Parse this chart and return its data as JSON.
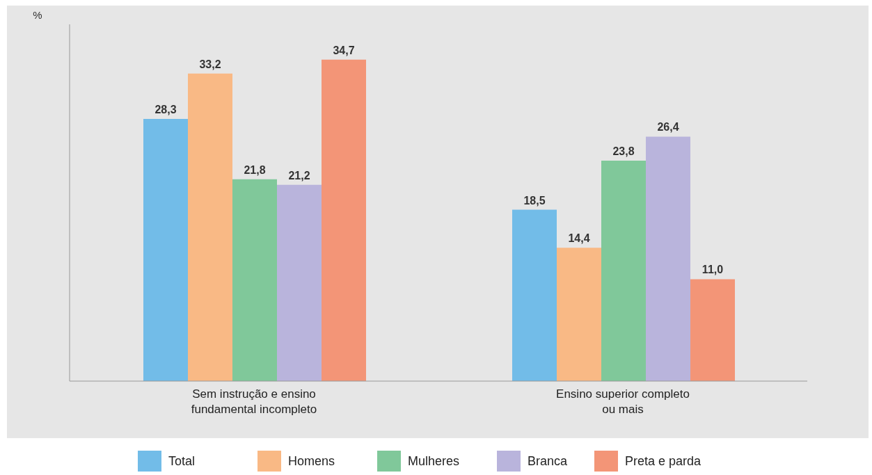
{
  "chart_data": {
    "type": "bar",
    "ylabel": "%",
    "categories": [
      "Sem instrução e ensino fundamental incompleto",
      "Ensino superior completo ou mais"
    ],
    "series": [
      {
        "name": "Total",
        "color": "#72bce8",
        "values": [
          28.3,
          18.5
        ],
        "value_labels": [
          "28,3",
          "18,5"
        ]
      },
      {
        "name": "Homens",
        "color": "#f9b985",
        "values": [
          33.2,
          14.4
        ],
        "value_labels": [
          "33,2",
          "14,4"
        ]
      },
      {
        "name": "Mulheres",
        "color": "#80c89a",
        "values": [
          21.8,
          23.8
        ],
        "value_labels": [
          "21,8",
          "23,8"
        ]
      },
      {
        "name": "Branca",
        "color": "#b9b4dc",
        "values": [
          21.2,
          26.4
        ],
        "value_labels": [
          "21,2",
          "26,4"
        ]
      },
      {
        "name": "Preta e parda",
        "color": "#f39577",
        "values": [
          34.7,
          11.0
        ],
        "value_labels": [
          "34,7",
          "11,0"
        ]
      }
    ],
    "legend": "bottom",
    "tick_labels": "x"
  }
}
